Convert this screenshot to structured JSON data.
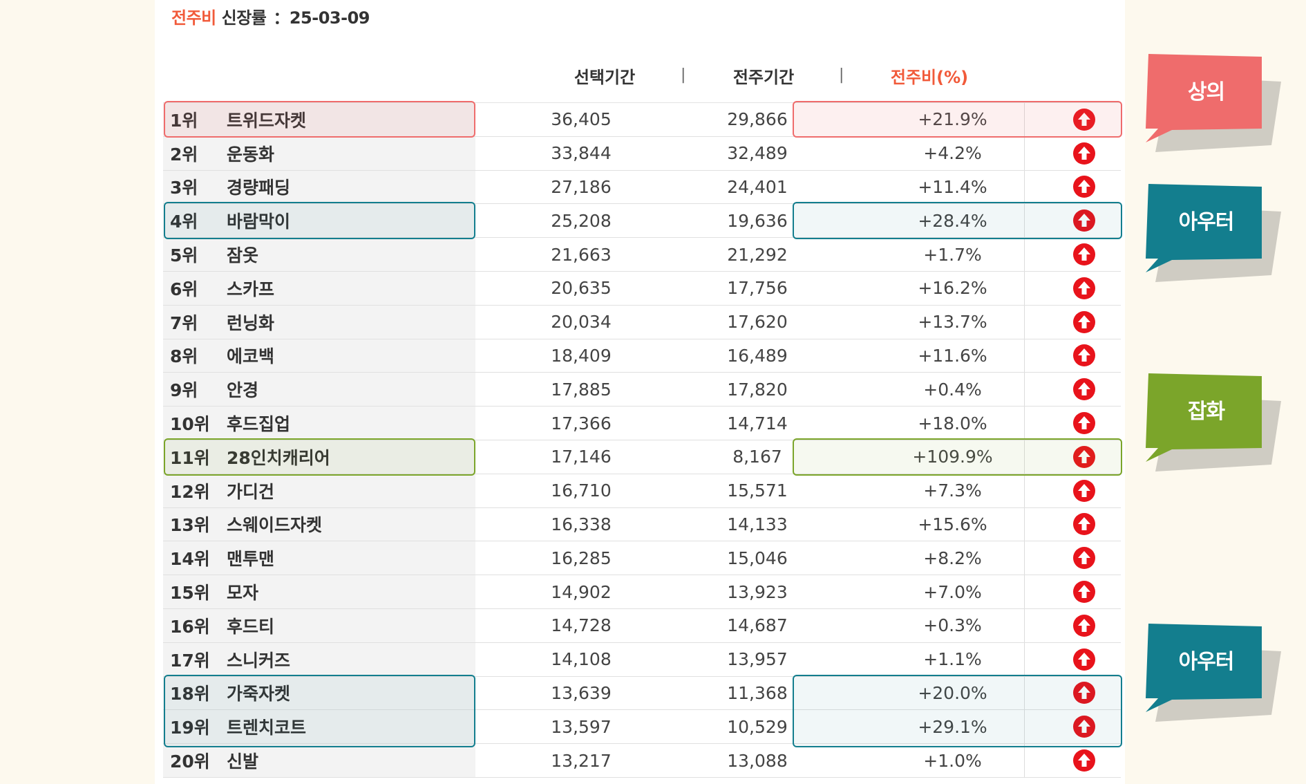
{
  "title": {
    "accent": "전주비",
    "label": "신장률",
    "date": "：25-03-09"
  },
  "columns": {
    "selected": "선택기간",
    "previous": "전주기간",
    "ratio": "전주비(%)",
    "separator": "|"
  },
  "colors": {
    "accent": "#f15a3a",
    "red": "#ef6c6c",
    "teal": "#137e8e",
    "green": "#7ba52a",
    "arrow": "#e8131b"
  },
  "rows": [
    {
      "rank": "1위",
      "name": "트위드자켓",
      "selected": "36,405",
      "previous": "29,866",
      "ratio": "+21.9%",
      "icon": "up-arrow-icon"
    },
    {
      "rank": "2위",
      "name": "운동화",
      "selected": "33,844",
      "previous": "32,489",
      "ratio": "+4.2%",
      "icon": "up-arrow-icon"
    },
    {
      "rank": "3위",
      "name": "경량패딩",
      "selected": "27,186",
      "previous": "24,401",
      "ratio": "+11.4%",
      "icon": "up-arrow-icon"
    },
    {
      "rank": "4위",
      "name": "바람막이",
      "selected": "25,208",
      "previous": "19,636",
      "ratio": "+28.4%",
      "icon": "up-arrow-icon"
    },
    {
      "rank": "5위",
      "name": "잠옷",
      "selected": "21,663",
      "previous": "21,292",
      "ratio": "+1.7%",
      "icon": "up-arrow-icon"
    },
    {
      "rank": "6위",
      "name": "스카프",
      "selected": "20,635",
      "previous": "17,756",
      "ratio": "+16.2%",
      "icon": "up-arrow-icon"
    },
    {
      "rank": "7위",
      "name": "런닝화",
      "selected": "20,034",
      "previous": "17,620",
      "ratio": "+13.7%",
      "icon": "up-arrow-icon"
    },
    {
      "rank": "8위",
      "name": "에코백",
      "selected": "18,409",
      "previous": "16,489",
      "ratio": "+11.6%",
      "icon": "up-arrow-icon"
    },
    {
      "rank": "9위",
      "name": "안경",
      "selected": "17,885",
      "previous": "17,820",
      "ratio": "+0.4%",
      "icon": "up-arrow-icon"
    },
    {
      "rank": "10위",
      "name": "후드집업",
      "selected": "17,366",
      "previous": "14,714",
      "ratio": "+18.0%",
      "icon": "up-arrow-icon"
    },
    {
      "rank": "11위",
      "name": "28인치캐리어",
      "selected": "17,146",
      "previous": "8,167",
      "ratio": "+109.9%",
      "icon": "up-arrow-icon"
    },
    {
      "rank": "12위",
      "name": "가디건",
      "selected": "16,710",
      "previous": "15,571",
      "ratio": "+7.3%",
      "icon": "up-arrow-icon"
    },
    {
      "rank": "13위",
      "name": "스웨이드자켓",
      "selected": "16,338",
      "previous": "14,133",
      "ratio": "+15.6%",
      "icon": "up-arrow-icon"
    },
    {
      "rank": "14위",
      "name": "맨투맨",
      "selected": "16,285",
      "previous": "15,046",
      "ratio": "+8.2%",
      "icon": "up-arrow-icon"
    },
    {
      "rank": "15위",
      "name": "모자",
      "selected": "14,902",
      "previous": "13,923",
      "ratio": "+7.0%",
      "icon": "up-arrow-icon"
    },
    {
      "rank": "16위",
      "name": "후드티",
      "selected": "14,728",
      "previous": "14,687",
      "ratio": "+0.3%",
      "icon": "up-arrow-icon"
    },
    {
      "rank": "17위",
      "name": "스니커즈",
      "selected": "14,108",
      "previous": "13,957",
      "ratio": "+1.1%",
      "icon": "up-arrow-icon"
    },
    {
      "rank": "18위",
      "name": "가죽자켓",
      "selected": "13,639",
      "previous": "11,368",
      "ratio": "+20.0%",
      "icon": "up-arrow-icon"
    },
    {
      "rank": "19위",
      "name": "트렌치코트",
      "selected": "13,597",
      "previous": "10,529",
      "ratio": "+29.1%",
      "icon": "up-arrow-icon"
    },
    {
      "rank": "20위",
      "name": "신발",
      "selected": "13,217",
      "previous": "13,088",
      "ratio": "+1.0%",
      "icon": "up-arrow-icon"
    }
  ],
  "callouts": [
    {
      "label": "상의",
      "color": "#ef6c6c"
    },
    {
      "label": "아우터",
      "color": "#137e8e"
    },
    {
      "label": "잡화",
      "color": "#7ba52a"
    },
    {
      "label": "아우터",
      "color": "#137e8e"
    }
  ]
}
